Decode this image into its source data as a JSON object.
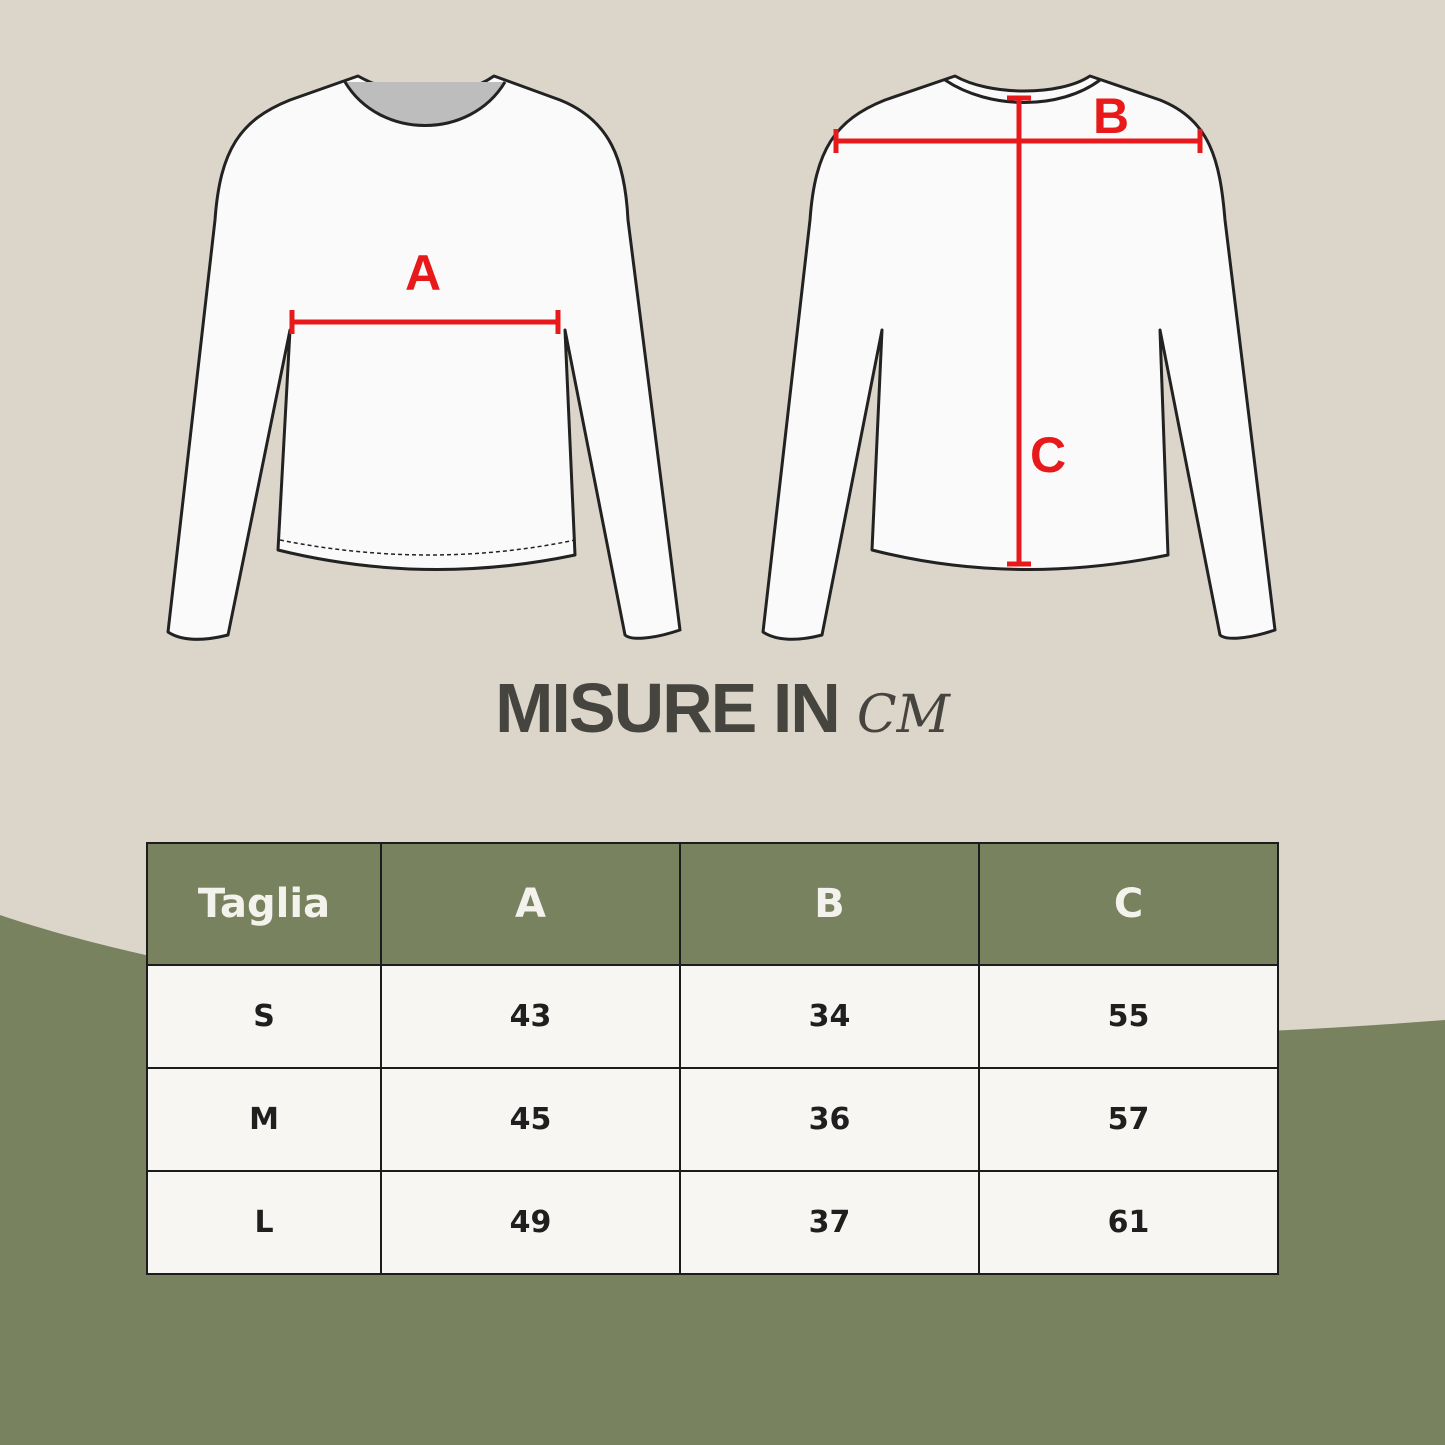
{
  "colors": {
    "background": "#dcd6ca",
    "accent_green": "#78825f",
    "measure_red": "#e8191b",
    "title": "#46443f"
  },
  "illustration": {
    "front_label": "A",
    "back_labels": [
      "B",
      "C"
    ]
  },
  "title": {
    "main": "MISURE IN",
    "unit": "CM"
  },
  "table": {
    "headers": [
      "Taglia",
      "A",
      "B",
      "C"
    ],
    "rows": [
      [
        "S",
        "43",
        "34",
        "55"
      ],
      [
        "M",
        "45",
        "36",
        "57"
      ],
      [
        "L",
        "49",
        "37",
        "61"
      ]
    ]
  }
}
